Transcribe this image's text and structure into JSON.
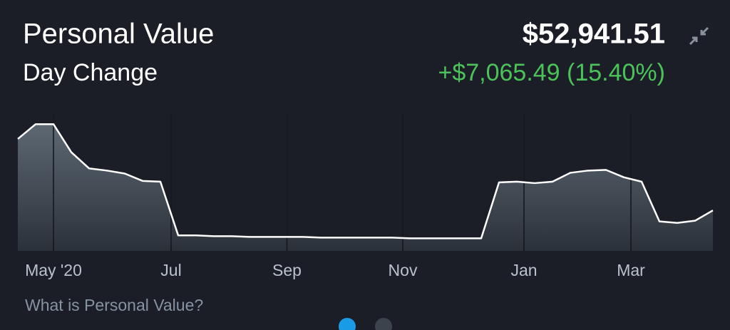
{
  "header": {
    "title": "Personal Value",
    "value": "$52,941.51",
    "change_label": "Day Change",
    "change": "+$7,065.49 (15.40%)"
  },
  "chart_data": {
    "type": "area",
    "color": "#ffffff",
    "values": [
      146200,
      165500,
      165500,
      128900,
      107700,
      104900,
      101000,
      91400,
      90400,
      20200,
      20200,
      19200,
      19200,
      18300,
      18300,
      18300,
      18300,
      17300,
      17300,
      17300,
      17300,
      17300,
      16400,
      16400,
      16400,
      16400,
      16400,
      89500,
      90400,
      88500,
      90400,
      102000,
      104900,
      105800,
      96200,
      90400,
      38500,
      36500,
      39400,
      52900
    ],
    "xticks": [
      {
        "value": 2,
        "label": "May '20"
      },
      {
        "value": 8.6,
        "label": "Jul"
      },
      {
        "value": 15.1,
        "label": "Sep"
      },
      {
        "value": 21.6,
        "label": "Nov"
      },
      {
        "value": 28.4,
        "label": "Jan"
      },
      {
        "value": 34.4,
        "label": "Mar"
      }
    ]
  },
  "footer": {
    "link": "What is Personal Value?"
  }
}
